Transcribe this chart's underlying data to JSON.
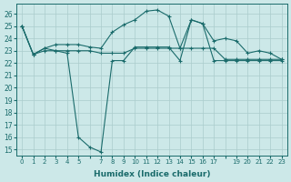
{
  "bg_color": "#cce8e8",
  "grid_color": "#aacccc",
  "line_color": "#1a6b6b",
  "xlabel": "Humidex (Indice chaleur)",
  "ylim": [
    14.5,
    26.8
  ],
  "xlim": [
    -0.5,
    23.5
  ],
  "yticks": [
    15,
    16,
    17,
    18,
    19,
    20,
    21,
    22,
    23,
    24,
    25,
    26
  ],
  "xticks": [
    0,
    1,
    2,
    3,
    4,
    5,
    6,
    7,
    8,
    9,
    10,
    11,
    12,
    13,
    14,
    15,
    16,
    17,
    18,
    19,
    20,
    21,
    22,
    23
  ],
  "xtick_labels": [
    "0",
    "1",
    "2",
    "3",
    "4",
    "5",
    "",
    "7",
    "8",
    "9",
    "10",
    "11",
    "12",
    "13",
    "14",
    "15",
    "16",
    "17",
    "",
    "19",
    "20",
    "21",
    "22",
    "23"
  ],
  "seriesA_x": [
    0,
    1,
    2,
    3,
    4,
    5,
    6,
    7,
    8,
    9,
    10,
    11,
    12,
    13,
    14,
    15,
    16,
    17,
    18,
    19,
    20,
    21,
    22,
    23
  ],
  "seriesA_y": [
    25.0,
    22.7,
    23.2,
    23.5,
    23.5,
    23.5,
    23.3,
    23.2,
    24.5,
    25.1,
    25.5,
    26.2,
    26.3,
    25.8,
    23.2,
    25.5,
    25.2,
    23.8,
    24.0,
    23.8,
    22.8,
    23.0,
    22.8,
    22.3
  ],
  "seriesB_x": [
    0,
    1,
    2,
    3,
    4,
    5,
    6,
    7,
    8,
    9,
    10,
    11,
    12,
    13,
    14,
    15,
    16,
    17,
    18,
    19,
    20,
    21,
    22,
    23
  ],
  "seriesB_y": [
    25.0,
    22.7,
    23.2,
    23.0,
    22.8,
    16.0,
    15.2,
    14.8,
    22.2,
    22.2,
    23.3,
    23.3,
    23.3,
    23.3,
    22.2,
    25.5,
    25.2,
    22.2,
    22.2,
    22.2,
    22.2,
    22.2,
    22.2,
    22.2
  ],
  "seriesC_x": [
    0,
    1,
    2,
    3,
    4,
    5,
    6,
    7,
    8,
    9,
    10,
    11,
    12,
    13,
    14,
    15,
    16,
    17,
    18,
    19,
    20,
    21,
    22,
    23
  ],
  "seriesC_y": [
    25.0,
    22.7,
    23.0,
    23.0,
    23.0,
    23.0,
    23.0,
    22.8,
    22.8,
    22.8,
    23.2,
    23.2,
    23.2,
    23.2,
    23.2,
    23.2,
    23.2,
    23.2,
    22.3,
    22.3,
    22.3,
    22.3,
    22.3,
    22.3
  ]
}
